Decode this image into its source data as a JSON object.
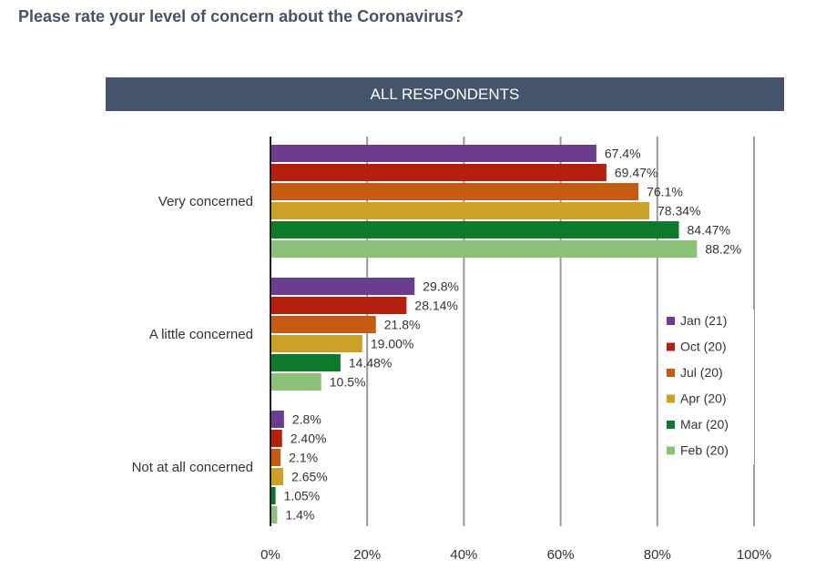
{
  "question": "Please rate your level of concern about the Coronavirus?",
  "banner": "ALL RESPONDENTS",
  "chart_data": {
    "type": "bar",
    "orientation": "horizontal",
    "title": "ALL RESPONDENTS",
    "categories": [
      "Very concerned",
      "A little concerned",
      "Not at all concerned"
    ],
    "series": [
      {
        "name": "Jan (21)",
        "color": "#6a3d8f",
        "values": [
          67.4,
          29.8,
          2.8
        ],
        "labels": [
          "67.4%",
          "29.8%",
          "2.8%"
        ]
      },
      {
        "name": "Oct (20)",
        "color": "#b3200e",
        "values": [
          69.47,
          28.14,
          2.4
        ],
        "labels": [
          "69.47%",
          "28.14%",
          "2.40%"
        ]
      },
      {
        "name": "Jul (20)",
        "color": "#c55a11",
        "values": [
          76.1,
          21.8,
          2.1
        ],
        "labels": [
          "76.1%",
          "21.8%",
          "2.1%"
        ]
      },
      {
        "name": "Apr (20)",
        "color": "#c9a227",
        "values": [
          78.34,
          19.0,
          2.65
        ],
        "labels": [
          "78.34%",
          "19.00%",
          "2.65%"
        ]
      },
      {
        "name": "Mar (20)",
        "color": "#0d7a2b",
        "values": [
          84.47,
          14.48,
          1.05
        ],
        "labels": [
          "84.47%",
          "14.48%",
          "1.05%"
        ]
      },
      {
        "name": "Feb (20)",
        "color": "#8cc17a",
        "values": [
          88.2,
          10.5,
          1.4
        ],
        "labels": [
          "88.2%",
          "10.5%",
          "1.4%"
        ]
      }
    ],
    "xlim": [
      0,
      100
    ],
    "xticks": [
      "0%",
      "20%",
      "40%",
      "60%",
      "80%",
      "100%"
    ],
    "grid": true,
    "legend": "right"
  }
}
